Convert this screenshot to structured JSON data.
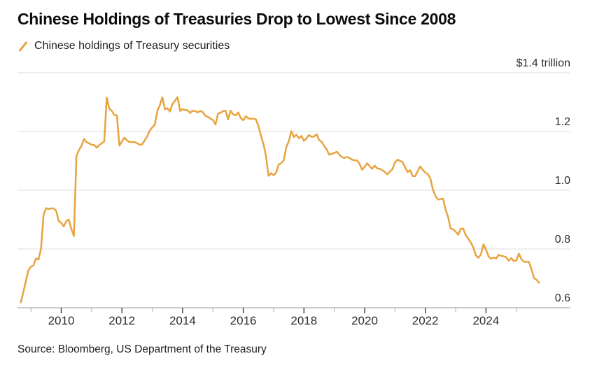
{
  "title": "Chinese Holdings of Treasuries Drop to Lowest Since 2008",
  "legend": {
    "label": "Chinese holdings of Treasury securities",
    "marker_color": "#E8A33E"
  },
  "source": "Source: Bloomberg, US Department of the Treasury",
  "chart_data": {
    "type": "line",
    "title": "Chinese Holdings of Treasuries Drop to Lowest Since 2008",
    "series_name": "Chinese holdings of Treasury securities",
    "unit": "USD trillions",
    "line_color": "#E8A33E",
    "grid": "horizontal",
    "legend_position": "top-left",
    "y_axis": {
      "side": "right",
      "range": [
        0.6,
        1.4
      ],
      "ticks": [
        {
          "value": 1.4,
          "label": "$1.4 trillion"
        },
        {
          "value": 1.2,
          "label": "1.2"
        },
        {
          "value": 1.0,
          "label": "1.0"
        },
        {
          "value": 0.8,
          "label": "0.8"
        },
        {
          "value": 0.6,
          "label": "0.6"
        }
      ]
    },
    "x_axis": {
      "range": [
        2008.5,
        2026.6
      ],
      "major_tick_years": [
        2010,
        2012,
        2014,
        2016,
        2018,
        2020,
        2022,
        2024
      ],
      "minor_tick_years": [
        2009,
        2011,
        2013,
        2015,
        2017,
        2019,
        2021,
        2023,
        2025
      ]
    },
    "frequency": "monthly",
    "start": {
      "year": 2008,
      "month": 9
    },
    "end": {
      "year": 2025,
      "month": 10
    },
    "values": [
      0.618,
      0.653,
      0.69,
      0.727,
      0.74,
      0.744,
      0.768,
      0.764,
      0.801,
      0.916,
      0.939,
      0.936,
      0.938,
      0.938,
      0.93,
      0.895,
      0.889,
      0.877,
      0.895,
      0.9,
      0.868,
      0.844,
      1.116,
      1.137,
      1.151,
      1.175,
      1.164,
      1.16,
      1.155,
      1.154,
      1.145,
      1.153,
      1.16,
      1.166,
      1.315,
      1.278,
      1.27,
      1.256,
      1.255,
      1.152,
      1.166,
      1.179,
      1.17,
      1.164,
      1.164,
      1.164,
      1.16,
      1.155,
      1.156,
      1.17,
      1.183,
      1.203,
      1.214,
      1.223,
      1.27,
      1.29,
      1.316,
      1.276,
      1.279,
      1.268,
      1.294,
      1.305,
      1.317,
      1.27,
      1.276,
      1.273,
      1.272,
      1.263,
      1.271,
      1.269,
      1.265,
      1.27,
      1.266,
      1.253,
      1.25,
      1.244,
      1.239,
      1.224,
      1.261,
      1.263,
      1.27,
      1.271,
      1.241,
      1.271,
      1.258,
      1.255,
      1.265,
      1.246,
      1.238,
      1.252,
      1.245,
      1.243,
      1.244,
      1.241,
      1.219,
      1.185,
      1.157,
      1.116,
      1.049,
      1.058,
      1.051,
      1.06,
      1.088,
      1.092,
      1.102,
      1.147,
      1.166,
      1.201,
      1.181,
      1.189,
      1.177,
      1.185,
      1.168,
      1.177,
      1.188,
      1.182,
      1.183,
      1.191,
      1.171,
      1.165,
      1.151,
      1.139,
      1.121,
      1.124,
      1.127,
      1.131,
      1.121,
      1.113,
      1.11,
      1.113,
      1.11,
      1.104,
      1.102,
      1.102,
      1.089,
      1.07,
      1.079,
      1.092,
      1.082,
      1.073,
      1.084,
      1.074,
      1.073,
      1.068,
      1.062,
      1.054,
      1.063,
      1.072,
      1.095,
      1.104,
      1.1,
      1.096,
      1.078,
      1.062,
      1.068,
      1.048,
      1.048,
      1.065,
      1.081,
      1.069,
      1.06,
      1.055,
      1.04,
      1.003,
      0.981,
      0.968,
      0.97,
      0.972,
      0.934,
      0.91,
      0.87,
      0.867,
      0.859,
      0.849,
      0.869,
      0.869,
      0.847,
      0.835,
      0.822,
      0.805,
      0.778,
      0.77,
      0.782,
      0.816,
      0.798,
      0.775,
      0.767,
      0.771,
      0.768,
      0.78,
      0.777,
      0.775,
      0.772,
      0.76,
      0.769,
      0.759,
      0.761,
      0.784,
      0.765,
      0.757,
      0.756,
      0.756,
      0.731,
      0.701,
      0.695,
      0.685
    ]
  }
}
